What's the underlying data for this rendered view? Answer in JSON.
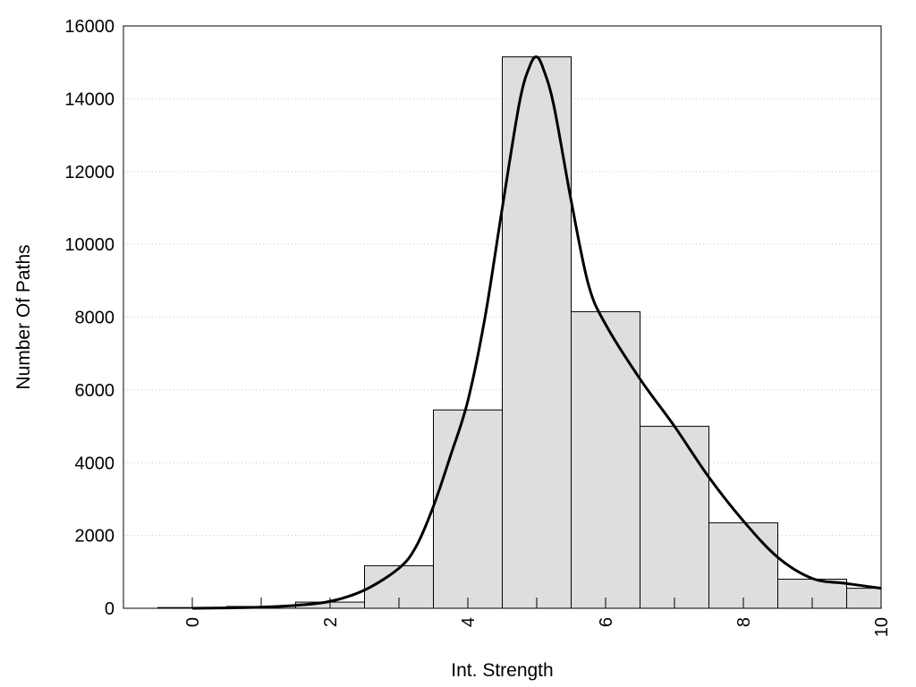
{
  "chart_data": {
    "type": "bar",
    "title": "",
    "xlabel": "Int. Strength",
    "ylabel": "Number Of Paths",
    "xlim": [
      -1,
      10
    ],
    "ylim": [
      0,
      16000
    ],
    "grid": "horizontal dotted",
    "x_ticks": [
      {
        "value": 0,
        "label": "0"
      },
      {
        "value": 2,
        "label": "2"
      },
      {
        "value": 4,
        "label": "4"
      },
      {
        "value": 6,
        "label": "6"
      },
      {
        "value": 8,
        "label": "8"
      },
      {
        "value": 10,
        "label": "10"
      }
    ],
    "y_ticks": [
      {
        "value": 0,
        "label": "0"
      },
      {
        "value": 2000,
        "label": "2000"
      },
      {
        "value": 4000,
        "label": "4000"
      },
      {
        "value": 6000,
        "label": "6000"
      },
      {
        "value": 8000,
        "label": "8000"
      },
      {
        "value": 10000,
        "label": "10000"
      },
      {
        "value": 12000,
        "label": "12000"
      },
      {
        "value": 14000,
        "label": "14000"
      },
      {
        "value": 16000,
        "label": "16000"
      }
    ],
    "bin_width": 1,
    "bins": [
      {
        "x": 0,
        "value": 20
      },
      {
        "x": 1,
        "value": 50
      },
      {
        "x": 2,
        "value": 170
      },
      {
        "x": 3,
        "value": 1170
      },
      {
        "x": 4,
        "value": 5450
      },
      {
        "x": 5,
        "value": 15150
      },
      {
        "x": 6,
        "value": 8150
      },
      {
        "x": 7,
        "value": 5000
      },
      {
        "x": 8,
        "value": 2350
      },
      {
        "x": 9,
        "value": 800
      },
      {
        "x": 10,
        "value": 550
      }
    ],
    "curve": {
      "x": [
        0,
        0.5,
        1,
        1.5,
        2,
        2.5,
        3,
        3.25,
        3.5,
        3.75,
        4,
        4.25,
        4.5,
        4.75,
        4.9,
        5,
        5.1,
        5.25,
        5.5,
        5.75,
        6,
        6.5,
        7,
        7.5,
        8,
        8.5,
        9,
        9.5,
        10
      ],
      "y": [
        0,
        10,
        30,
        80,
        190,
        500,
        1100,
        1700,
        2800,
        4200,
        5700,
        8000,
        11000,
        13900,
        14900,
        15150,
        14800,
        13800,
        11200,
        8900,
        7800,
        6300,
        5000,
        3600,
        2400,
        1400,
        820,
        680,
        550
      ]
    },
    "colors": {
      "bar_fill": "#dedede",
      "bar_stroke": "#000000",
      "curve": "#000000",
      "grid": "#c8c8c8"
    }
  }
}
